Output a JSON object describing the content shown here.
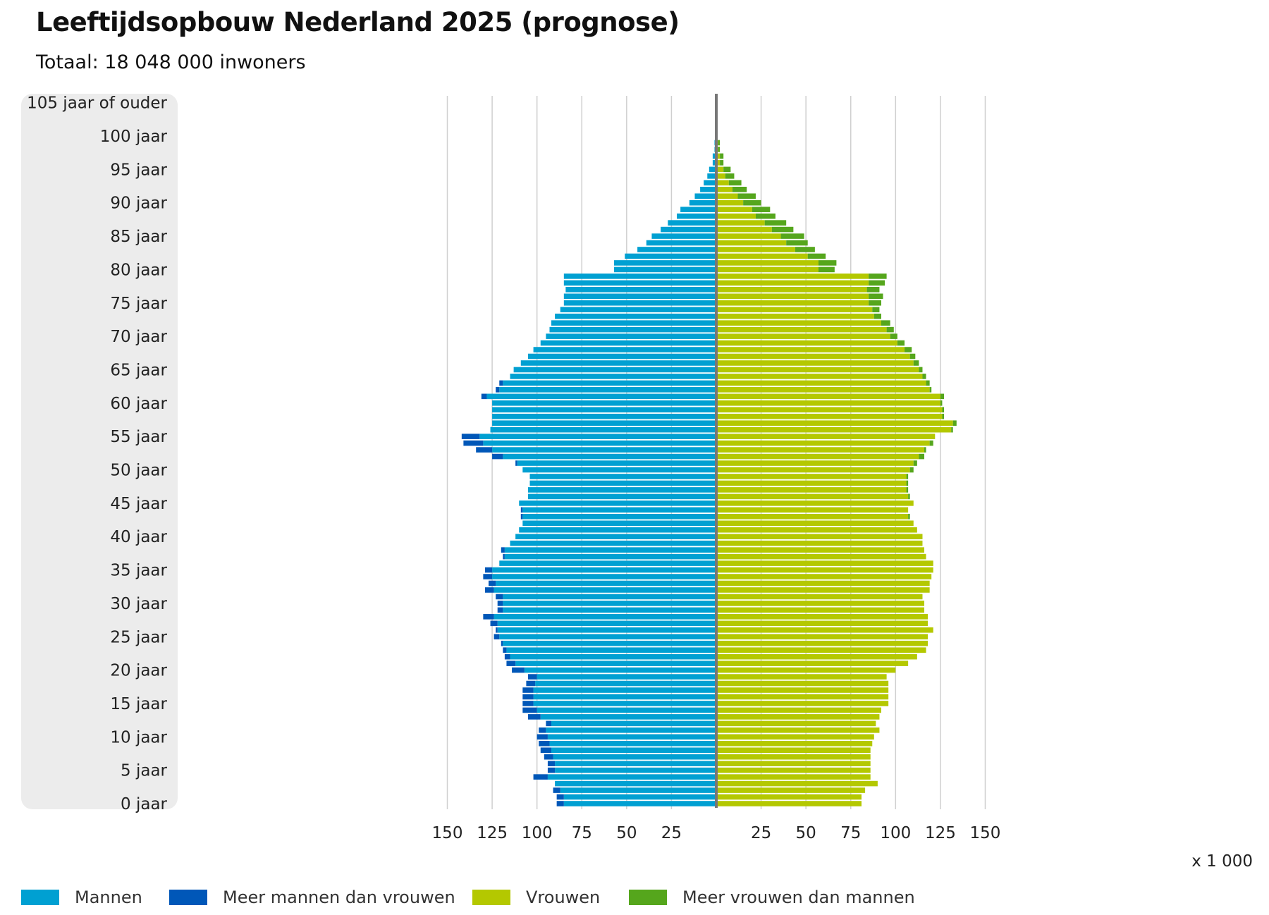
{
  "header": {
    "title": "Leeftijdsopbouw Nederland 2025 (prognose)",
    "subtitle": "Totaal: 18 048 000 inwoners"
  },
  "colors": {
    "men": "#00a0d2",
    "men_surplus": "#0057b8",
    "women": "#b4c800",
    "women_surplus": "#55a61c",
    "grid": "#cfcfcf",
    "axis": "#777777",
    "age_band": "#ececec"
  },
  "legend": [
    {
      "label": "Mannen",
      "color": "#00a0d2"
    },
    {
      "label": "Meer mannen dan vrouwen",
      "color": "#0057b8"
    },
    {
      "label": "Vrouwen",
      "color": "#b4c800"
    },
    {
      "label": "Meer vrouwen dan mannen",
      "color": "#55a61c"
    }
  ],
  "chart_data": {
    "type": "bar",
    "orientation": "horizontal-population-pyramid",
    "title": "Leeftijdsopbouw Nederland 2025 (prognose)",
    "subtitle": "Totaal: 18 048 000 inwoners",
    "unit_label": "x 1 000",
    "y_tick_labels": [
      "105 jaar of ouder",
      "100 jaar",
      "95 jaar",
      "90 jaar",
      "85 jaar",
      "80 jaar",
      "75 jaar",
      "70 jaar",
      "65 jaar",
      "60 jaar",
      "55 jaar",
      "50 jaar",
      "45 jaar",
      "40 jaar",
      "35 jaar",
      "30 jaar",
      "25 jaar",
      "20 jaar",
      "15 jaar",
      "10 jaar",
      "5 jaar",
      "0 jaar"
    ],
    "y_tick_ages": [
      105,
      100,
      95,
      90,
      85,
      80,
      75,
      70,
      65,
      60,
      55,
      50,
      45,
      40,
      35,
      30,
      25,
      20,
      15,
      10,
      5,
      0
    ],
    "x_tick_labels_left": [
      "150",
      "125",
      "100",
      "75",
      "50",
      "25"
    ],
    "x_tick_labels_right": [
      "25",
      "50",
      "75",
      "100",
      "125",
      "150"
    ],
    "x_ticks": [
      150,
      125,
      100,
      75,
      50,
      25
    ],
    "xlim": [
      0,
      150
    ],
    "grid": true,
    "legend_position": "bottom",
    "ages": [
      0,
      1,
      2,
      3,
      4,
      5,
      6,
      7,
      8,
      9,
      10,
      11,
      12,
      13,
      14,
      15,
      16,
      17,
      18,
      19,
      20,
      21,
      22,
      23,
      24,
      25,
      26,
      27,
      28,
      29,
      30,
      31,
      32,
      33,
      34,
      35,
      36,
      37,
      38,
      39,
      40,
      41,
      42,
      43,
      44,
      45,
      46,
      47,
      48,
      49,
      50,
      51,
      52,
      53,
      54,
      55,
      56,
      57,
      58,
      59,
      60,
      61,
      62,
      63,
      64,
      65,
      66,
      67,
      68,
      69,
      70,
      71,
      72,
      73,
      74,
      75,
      76,
      77,
      78,
      79,
      80,
      81,
      82,
      83,
      84,
      85,
      86,
      87,
      88,
      89,
      90,
      91,
      92,
      93,
      94,
      95,
      96,
      97,
      98,
      99,
      100,
      101,
      102,
      103,
      104,
      105
    ],
    "series": [
      {
        "name": "Mannen",
        "values": [
          85,
          85,
          87,
          90,
          94,
          90,
          90,
          91,
          92,
          93,
          94,
          95,
          92,
          98,
          100,
          102,
          102,
          102,
          101,
          100,
          107,
          112,
          115,
          117,
          119,
          121,
          122,
          122,
          124,
          119,
          119,
          119,
          124,
          123,
          125,
          125,
          121,
          118,
          118,
          115,
          112,
          110,
          108,
          108,
          108,
          110,
          105,
          105,
          104,
          104,
          108,
          111,
          119,
          125,
          130,
          132,
          126,
          125,
          125,
          125,
          125,
          128,
          121,
          119,
          115,
          113,
          109,
          105,
          102,
          98,
          95,
          93,
          92,
          90,
          87,
          85,
          85,
          84,
          85,
          85,
          57,
          57,
          51,
          44,
          39,
          36,
          31,
          27,
          22,
          20,
          15,
          12,
          9,
          7,
          5,
          4,
          2,
          2,
          1,
          1,
          0,
          0,
          0,
          0,
          0,
          0
        ]
      },
      {
        "name": "Vrouwen",
        "values": [
          81,
          81,
          83,
          90,
          86,
          86,
          86,
          86,
          86,
          87,
          88,
          91,
          89,
          91,
          92,
          96,
          96,
          96,
          96,
          95,
          100,
          107,
          112,
          117,
          118,
          118,
          121,
          118,
          118,
          116,
          116,
          115,
          119,
          119,
          120,
          121,
          121,
          117,
          116,
          115,
          115,
          112,
          110,
          107,
          107,
          110,
          107,
          106,
          106,
          106,
          108,
          110,
          113,
          116,
          119,
          122,
          131,
          132,
          126,
          126,
          125,
          125,
          119,
          117,
          115,
          113,
          110,
          108,
          105,
          101,
          97,
          95,
          92,
          88,
          87,
          85,
          85,
          84,
          85,
          85,
          57,
          57,
          51,
          44,
          39,
          36,
          31,
          27,
          22,
          20,
          15,
          12,
          9,
          7,
          5,
          4,
          2,
          2,
          1,
          1,
          0,
          0,
          0,
          0,
          0,
          0
        ]
      },
      {
        "name": "Meer mannen dan vrouwen",
        "values": [
          4,
          4,
          4,
          0,
          8,
          4,
          4,
          5,
          6,
          6,
          6,
          4,
          3,
          7,
          8,
          6,
          6,
          6,
          5,
          5,
          7,
          5,
          3,
          2,
          1,
          3,
          1,
          4,
          6,
          3,
          3,
          4,
          5,
          4,
          5,
          4,
          0,
          1,
          2,
          0,
          0,
          0,
          0,
          1,
          1,
          0,
          0,
          0,
          0,
          0,
          0,
          1,
          6,
          9,
          11,
          10,
          0,
          0,
          0,
          0,
          0,
          3,
          2,
          2,
          0,
          0,
          0,
          0,
          0,
          0,
          0,
          0,
          0,
          0,
          0,
          0,
          0,
          0,
          0,
          0,
          0,
          0,
          0,
          0,
          0,
          0,
          0,
          0,
          0,
          0,
          0,
          0,
          0,
          0,
          0,
          0,
          0,
          0,
          0,
          0,
          0,
          0,
          0,
          0,
          0,
          0
        ]
      },
      {
        "name": "Meer vrouwen dan mannen",
        "values": [
          0,
          0,
          0,
          0,
          0,
          0,
          0,
          0,
          0,
          0,
          0,
          0,
          0,
          0,
          0,
          0,
          0,
          0,
          0,
          0,
          0,
          0,
          0,
          0,
          0,
          0,
          0,
          0,
          0,
          0,
          0,
          0,
          0,
          0,
          0,
          0,
          0,
          0,
          0,
          0,
          0,
          0,
          0,
          1,
          0,
          0,
          1,
          1,
          1,
          1,
          2,
          2,
          3,
          1,
          2,
          0,
          1,
          2,
          1,
          1,
          1,
          2,
          1,
          2,
          2,
          2,
          3,
          3,
          4,
          4,
          4,
          4,
          5,
          4,
          4,
          7,
          8,
          7,
          9,
          10,
          9,
          10,
          10,
          11,
          12,
          13,
          12,
          12,
          11,
          10,
          10,
          10,
          8,
          7,
          5,
          4,
          2,
          2,
          1,
          1,
          0,
          0,
          0,
          0,
          0,
          0
        ]
      }
    ]
  }
}
